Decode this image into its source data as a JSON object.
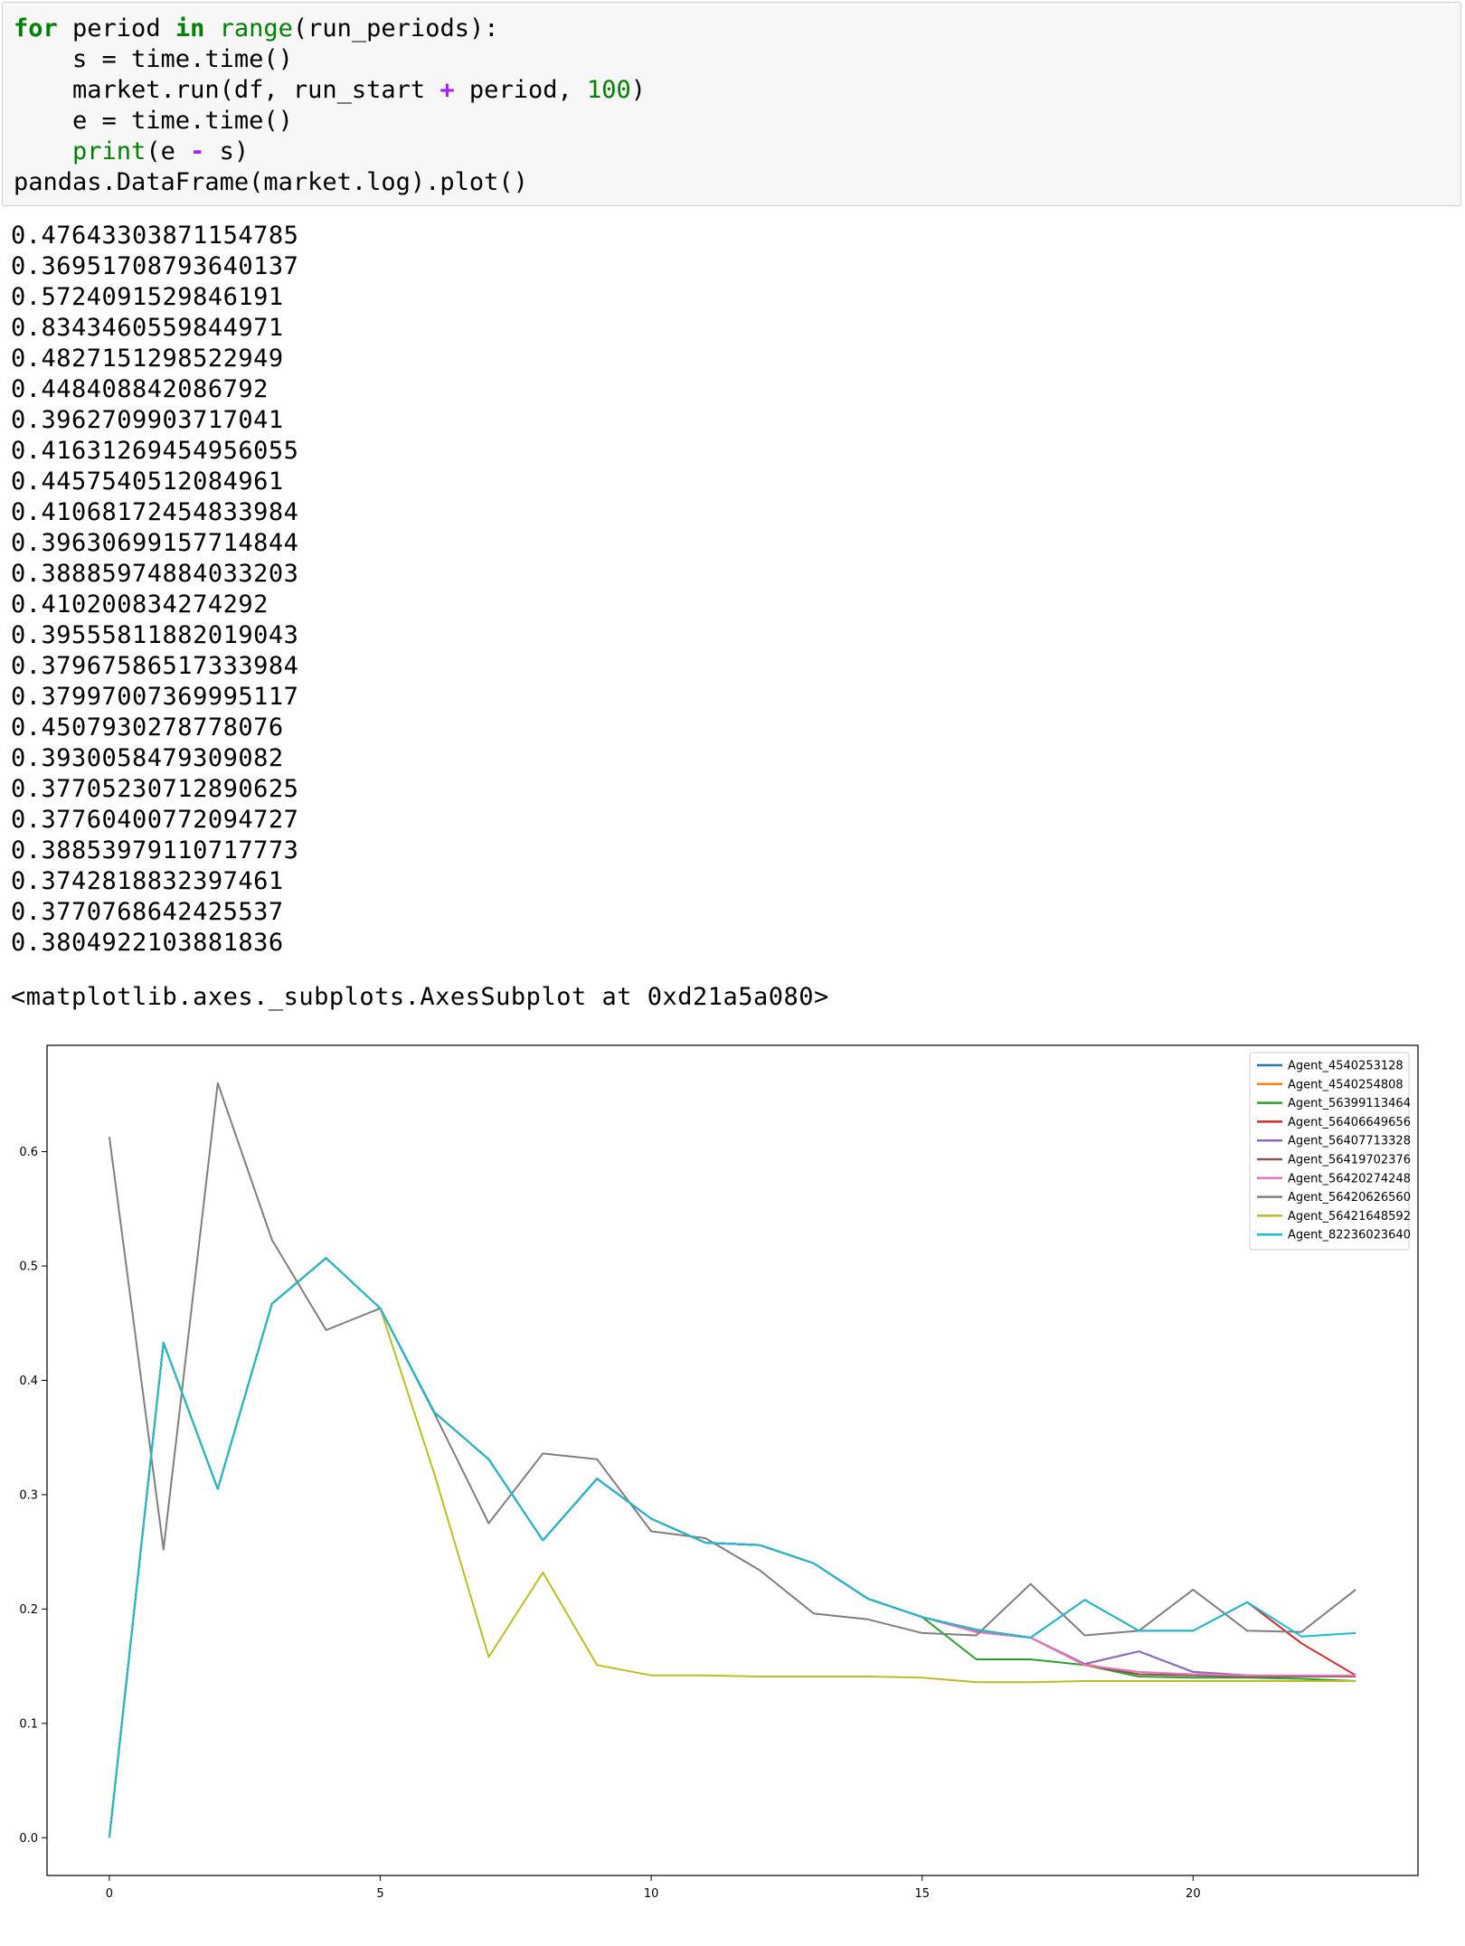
{
  "code_cell": {
    "lines": [
      [
        {
          "t": "for",
          "c": "kw"
        },
        {
          "t": " period "
        },
        {
          "t": "in",
          "c": "kw"
        },
        {
          "t": " "
        },
        {
          "t": "range",
          "c": "bi"
        },
        {
          "t": "(run_periods):"
        }
      ],
      [
        {
          "t": "    s = time.time()"
        }
      ],
      [
        {
          "t": "    market.run(df, run_start "
        },
        {
          "t": "+",
          "c": "op"
        },
        {
          "t": " period, "
        },
        {
          "t": "100",
          "c": "num"
        },
        {
          "t": ")"
        }
      ],
      [
        {
          "t": "    e = time.time()"
        }
      ],
      [
        {
          "t": "    "
        },
        {
          "t": "print",
          "c": "bi"
        },
        {
          "t": "(e "
        },
        {
          "t": "-",
          "c": "op"
        },
        {
          "t": " s)"
        }
      ],
      [
        {
          "t": "pandas.DataFrame(market.log).plot()"
        }
      ]
    ]
  },
  "stdout_lines": [
    "0.47643303871154785",
    "0.36951708793640137",
    "0.5724091529846191",
    "0.8343460559844971",
    "0.4827151298522949",
    "0.448408842086792",
    "0.3962709903717041",
    "0.41631269454956055",
    "0.4457540512084961",
    "0.41068172454833984",
    "0.39630699157714844",
    "0.38885974884033203",
    "0.410200834274292",
    "0.39555811882019043",
    "0.37967586517333984",
    "0.37997007369995117",
    "0.4507930278778076",
    "0.3930058479309082",
    "0.37705230712890625",
    "0.37760400772094727",
    "0.38853979110717773",
    "0.3742818832397461",
    "0.3770768642425537",
    "0.3804922103881836"
  ],
  "result_repr": "<matplotlib.axes._subplots.AxesSubplot at 0xd21a5a080>",
  "chart_data": {
    "type": "line",
    "title": "",
    "xlabel": "",
    "ylabel": "",
    "xlim": [
      -1.15,
      24.15
    ],
    "ylim": [
      -0.033,
      0.693
    ],
    "xticks": [
      0,
      5,
      10,
      15,
      20
    ],
    "yticks": [
      0.0,
      0.1,
      0.2,
      0.3,
      0.4,
      0.5,
      0.6
    ],
    "ytick_labels": [
      "0.0",
      "0.1",
      "0.2",
      "0.3",
      "0.4",
      "0.5",
      "0.6"
    ],
    "legend_position": "top-right",
    "grid": false,
    "x": [
      0,
      1,
      2,
      3,
      4,
      5,
      6,
      7,
      8,
      9,
      10,
      11,
      12,
      13,
      14,
      15,
      16,
      17,
      18,
      19,
      20,
      21,
      22,
      23
    ],
    "series": [
      {
        "name": "Agent_4540253128",
        "color": "#1f77b4",
        "values": [
          0.0,
          0.433,
          0.305,
          0.467,
          0.507,
          0.463,
          0.372,
          0.331,
          0.26,
          0.314,
          0.279,
          0.258,
          0.256,
          0.24,
          0.209,
          0.193,
          0.18,
          0.175,
          0.152,
          0.163,
          0.145,
          0.142,
          0.141,
          0.141
        ]
      },
      {
        "name": "Agent_4540254808",
        "color": "#ff7f0e",
        "values": [
          0.0,
          0.433,
          0.305,
          0.467,
          0.507,
          0.463,
          0.372,
          0.331,
          0.26,
          0.314,
          0.279,
          0.258,
          0.256,
          0.24,
          0.209,
          0.193,
          0.181,
          0.175,
          0.152,
          0.143,
          0.142,
          0.141,
          0.141,
          0.141
        ]
      },
      {
        "name": "Agent_56399113464",
        "color": "#2ca02c",
        "values": [
          0.0,
          0.433,
          0.305,
          0.467,
          0.507,
          0.463,
          0.372,
          0.331,
          0.26,
          0.314,
          0.279,
          0.258,
          0.256,
          0.24,
          0.209,
          0.193,
          0.156,
          0.156,
          0.151,
          0.141,
          0.14,
          0.14,
          0.139,
          0.137
        ]
      },
      {
        "name": "Agent_56406649656",
        "color": "#d62728",
        "values": [
          0.0,
          0.433,
          0.305,
          0.467,
          0.507,
          0.463,
          0.372,
          0.331,
          0.26,
          0.314,
          0.279,
          0.258,
          0.256,
          0.24,
          0.209,
          0.193,
          0.182,
          0.175,
          0.208,
          0.181,
          0.181,
          0.206,
          0.17,
          0.142
        ]
      },
      {
        "name": "Agent_56407713328",
        "color": "#9467bd",
        "values": [
          0.0,
          0.433,
          0.305,
          0.467,
          0.507,
          0.463,
          0.372,
          0.331,
          0.26,
          0.314,
          0.279,
          0.258,
          0.256,
          0.24,
          0.209,
          0.193,
          0.18,
          0.175,
          0.152,
          0.163,
          0.145,
          0.142,
          0.141,
          0.141
        ]
      },
      {
        "name": "Agent_56419702376",
        "color": "#8c564b",
        "values": [
          0.0,
          0.433,
          0.305,
          0.467,
          0.507,
          0.463,
          0.372,
          0.331,
          0.26,
          0.314,
          0.279,
          0.258,
          0.256,
          0.24,
          0.209,
          0.193,
          0.18,
          0.175,
          0.151,
          0.143,
          0.142,
          0.141,
          0.141,
          0.141
        ]
      },
      {
        "name": "Agent_56420274248",
        "color": "#e377c2",
        "values": [
          0.0,
          0.433,
          0.305,
          0.467,
          0.507,
          0.463,
          0.372,
          0.331,
          0.26,
          0.314,
          0.279,
          0.258,
          0.256,
          0.24,
          0.209,
          0.193,
          0.18,
          0.175,
          0.151,
          0.145,
          0.143,
          0.142,
          0.142,
          0.142
        ]
      },
      {
        "name": "Agent_56420626560",
        "color": "#7f7f7f",
        "values": [
          0.613,
          0.252,
          0.66,
          0.523,
          0.444,
          0.463,
          0.371,
          0.275,
          0.336,
          0.331,
          0.268,
          0.262,
          0.234,
          0.196,
          0.191,
          0.179,
          0.177,
          0.222,
          0.177,
          0.181,
          0.217,
          0.181,
          0.18,
          0.217
        ]
      },
      {
        "name": "Agent_56421648592",
        "color": "#bcbd22",
        "values": [
          0.0,
          0.433,
          0.305,
          0.467,
          0.507,
          0.463,
          0.318,
          0.158,
          0.232,
          0.151,
          0.142,
          0.142,
          0.141,
          0.141,
          0.141,
          0.14,
          0.136,
          0.136,
          0.137,
          0.137,
          0.137,
          0.137,
          0.137,
          0.137
        ]
      },
      {
        "name": "Agent_82236023640",
        "color": "#17becf",
        "values": [
          0.0,
          0.433,
          0.305,
          0.467,
          0.507,
          0.463,
          0.372,
          0.331,
          0.26,
          0.314,
          0.279,
          0.258,
          0.256,
          0.24,
          0.209,
          0.193,
          0.182,
          0.175,
          0.208,
          0.181,
          0.181,
          0.206,
          0.176,
          0.179
        ]
      }
    ]
  }
}
